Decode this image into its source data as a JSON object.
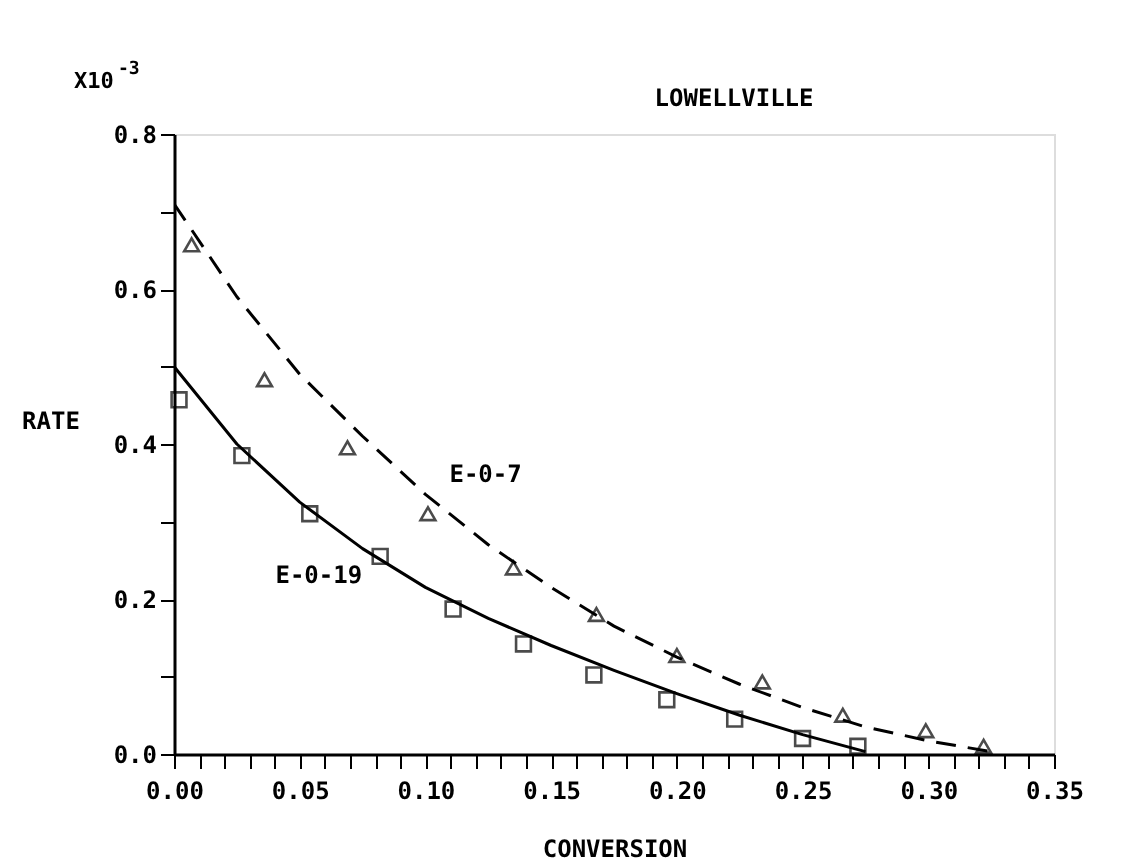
{
  "chart_data": {
    "type": "scatter",
    "title": "LOWELLVILLE",
    "xlabel": "CONVERSION",
    "ylabel": "RATE",
    "annotations": [
      "X10$^{-3}$"
    ],
    "xlim": [
      0,
      0.35
    ],
    "ylim": [
      0,
      0.8
    ],
    "xticks": [
      {
        "value": 0,
        "label": "0.00"
      },
      {
        "value": 0.01,
        "label": null
      },
      {
        "value": 0.02,
        "label": null
      },
      {
        "value": 0.03,
        "label": null
      },
      {
        "value": 0.04,
        "label": null
      },
      {
        "value": 0.05,
        "label": "0.05"
      },
      {
        "value": 0.06,
        "label": null
      },
      {
        "value": 0.07,
        "label": null
      },
      {
        "value": 0.08,
        "label": null
      },
      {
        "value": 0.09,
        "label": null
      },
      {
        "value": 0.1,
        "label": "0.10"
      },
      {
        "value": 0.11,
        "label": null
      },
      {
        "value": 0.12,
        "label": null
      },
      {
        "value": 0.13,
        "label": null
      },
      {
        "value": 0.14,
        "label": null
      },
      {
        "value": 0.15,
        "label": "0.15"
      },
      {
        "value": 0.16,
        "label": null
      },
      {
        "value": 0.17,
        "label": null
      },
      {
        "value": 0.18,
        "label": null
      },
      {
        "value": 0.19,
        "label": null
      },
      {
        "value": 0.2,
        "label": "0.20"
      },
      {
        "value": 0.21,
        "label": null
      },
      {
        "value": 0.22,
        "label": null
      },
      {
        "value": 0.23,
        "label": null
      },
      {
        "value": 0.24,
        "label": null
      },
      {
        "value": 0.25,
        "label": "0.25"
      },
      {
        "value": 0.26,
        "label": null
      },
      {
        "value": 0.27,
        "label": null
      },
      {
        "value": 0.28,
        "label": null
      },
      {
        "value": 0.29,
        "label": null
      },
      {
        "value": 0.3,
        "label": "0.30"
      },
      {
        "value": 0.31,
        "label": null
      },
      {
        "value": 0.32,
        "label": null
      },
      {
        "value": 0.33,
        "label": null
      },
      {
        "value": 0.34,
        "label": null
      },
      {
        "value": 0.35,
        "label": "0.35"
      }
    ],
    "yticks": [
      {
        "value": 0,
        "label": "0.0"
      },
      {
        "value": 0.1,
        "label": null
      },
      {
        "value": 0.2,
        "label": "0.2"
      },
      {
        "value": 0.3,
        "label": null
      },
      {
        "value": 0.4,
        "label": "0.4"
      },
      {
        "value": 0.5,
        "label": null
      },
      {
        "value": 0.6,
        "label": "0.6"
      },
      {
        "value": 0.7,
        "label": null
      },
      {
        "value": 0.8,
        "label": "0.8"
      }
    ],
    "grid": false,
    "series": [
      {
        "marker": "triangle",
        "color": "#000000",
        "x": [
          0.007,
          0.036,
          0.069,
          0.101,
          0.135,
          0.168,
          0.2,
          0.234,
          0.266,
          0.299,
          0.322
        ],
        "values": [
          0.657,
          0.483,
          0.395,
          0.31,
          0.24,
          0.18,
          0.127,
          0.093,
          0.05,
          0.03,
          0.01
        ]
      },
      {
        "type": "line",
        "name": "E-0-7",
        "line_style": "dashed",
        "marker": "none",
        "color": "#000000",
        "x": [
          0,
          0.025,
          0.05,
          0.075,
          0.1,
          0.125,
          0.15,
          0.175,
          0.2,
          0.225,
          0.25,
          0.275,
          0.3,
          0.325
        ],
        "values": [
          0.71,
          0.59,
          0.49,
          0.41,
          0.335,
          0.27,
          0.215,
          0.165,
          0.125,
          0.09,
          0.06,
          0.035,
          0.017,
          0.003
        ]
      },
      {
        "marker": "square",
        "color": "#000000",
        "x": [
          0.002,
          0.027,
          0.054,
          0.082,
          0.111,
          0.139,
          0.167,
          0.196,
          0.223,
          0.25,
          0.272
        ],
        "values": [
          0.457,
          0.385,
          0.31,
          0.255,
          0.187,
          0.142,
          0.102,
          0.07,
          0.045,
          0.02,
          0.01
        ]
      },
      {
        "type": "line",
        "name": "E-0-19",
        "line_style": "solid",
        "marker": "none",
        "color": "#000000",
        "x": [
          0,
          0.025,
          0.05,
          0.075,
          0.1,
          0.125,
          0.15,
          0.175,
          0.2,
          0.225,
          0.25,
          0.275
        ],
        "values": [
          0.5,
          0.4,
          0.325,
          0.265,
          0.215,
          0.175,
          0.14,
          0.108,
          0.078,
          0.05,
          0.025,
          0.003
        ]
      }
    ]
  }
}
